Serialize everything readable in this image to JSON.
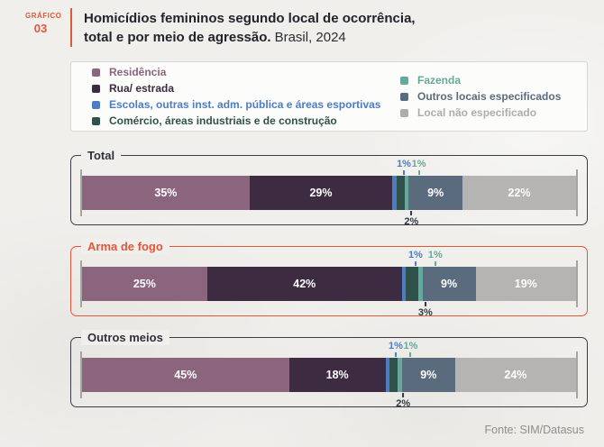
{
  "header": {
    "kicker_top": "GRÁFICO",
    "kicker_number": "03",
    "title_line1": "Homicídios femininos segundo local de ocorrência,",
    "title_line2_bold": "total e por meio de agressão.",
    "title_line2_regular": "Brasil, 2024"
  },
  "legend": {
    "columns": [
      [
        {
          "label": "Residência",
          "color": "#8b657e"
        },
        {
          "label": "Rua/ estrada",
          "color": "#3c2b41"
        },
        {
          "label": "Escolas, outras inst. adm. pública e áreas esportivas",
          "color": "#4d7cc4"
        },
        {
          "label": "Comércio, áreas industriais e de construção",
          "color": "#30514a"
        }
      ],
      [
        {
          "label": "Fazenda",
          "color": "#66a89b"
        },
        {
          "label": "Outros locais especificados",
          "color": "#5b6b7e"
        },
        {
          "label": "Local não especificado",
          "color": "#aeadac"
        }
      ]
    ]
  },
  "chart_data": {
    "type": "bar",
    "subtype": "horizontal-stacked-percent",
    "title": "Homicídios femininos segundo local de ocorrência, total e por meio de agressão. Brasil, 2024",
    "categories": [
      "Residência",
      "Rua/ estrada",
      "Escolas, outras inst. adm. pública e áreas esportivas",
      "Comércio, áreas industriais e de construção",
      "Fazenda",
      "Outros locais especificados",
      "Local não especificado"
    ],
    "series_colors": [
      "#8b657e",
      "#3c2b41",
      "#4d7cc4",
      "#30514a",
      "#66a89b",
      "#5b6b7e",
      "#b5b4b3"
    ],
    "bars": [
      {
        "label": "Total",
        "highlight": false,
        "values": [
          35,
          29,
          1,
          2,
          1,
          9,
          22
        ]
      },
      {
        "label": "Arma de fogo",
        "highlight": true,
        "values": [
          25,
          42,
          1,
          3,
          1,
          9,
          19
        ]
      },
      {
        "label": "Outros meios",
        "highlight": false,
        "values": [
          45,
          18,
          1,
          2,
          1,
          9,
          24
        ]
      }
    ],
    "callouts": {
      "above": [
        {
          "index": 2,
          "color": "#4d7cc4"
        },
        {
          "index": 4,
          "color": "#66a89b"
        }
      ],
      "below": [
        {
          "index": 3,
          "color": "#333a45"
        }
      ]
    },
    "value_suffix": "%",
    "xlim": [
      0,
      100
    ],
    "legend_position": "top",
    "accent_color": "#e2563a"
  },
  "footer": {
    "source": "Fonte: SIM/Datasus"
  }
}
